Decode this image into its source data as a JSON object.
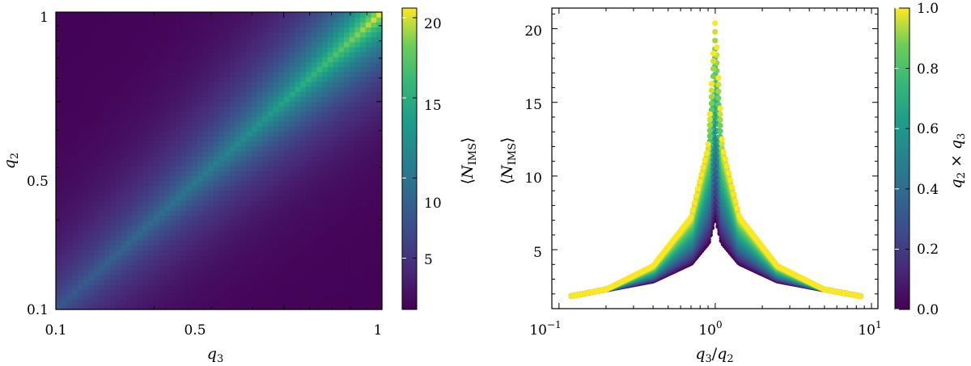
{
  "chart_data": [
    {
      "type": "heatmap",
      "title": "",
      "xlabel": {
        "base": "q",
        "sub": "3"
      },
      "ylabel": {
        "base": "q",
        "sub": "2"
      },
      "x_ticks": [
        "0.1",
        "0.5",
        "1"
      ],
      "y_ticks": [
        "0.1",
        "0.5",
        "1"
      ],
      "xlim": [
        0.1,
        1
      ],
      "ylim": [
        0.1,
        1
      ],
      "scale": "log",
      "value": "peak along q2 = q3, falling off away from the diagonal; maximum at q2 = q3 = 1",
      "diagonal_profile": {
        "q": [
          0.1,
          0.5,
          1
        ],
        "value": [
          7.5,
          14,
          20.5
        ]
      },
      "corner_values": {
        "q3=1,q2=0.1": 1.9,
        "q3=0.1,q2=1": 1.9
      },
      "colormap": "viridis",
      "colorbar": {
        "label": {
          "open": "⟨",
          "base": "N",
          "sub": "IMS",
          "close": "⟩"
        },
        "ticks": [
          "5",
          "10",
          "15",
          "20"
        ],
        "range": [
          1.8,
          20.6
        ]
      }
    },
    {
      "type": "scatter",
      "title": "",
      "xlabel": {
        "num": "q",
        "num_sub": "3",
        "slash": "/",
        "den": "q",
        "den_sub": "2"
      },
      "ylabel": {
        "open": "⟨",
        "base": "N",
        "sub": "IMS",
        "close": "⟩"
      },
      "xscale": "log",
      "x_ticks": [
        {
          "base": "10",
          "exp": "−1"
        },
        {
          "base": "10",
          "exp": "0"
        },
        {
          "base": "10",
          "exp": "1"
        }
      ],
      "y_ticks": [
        "5",
        "10",
        "15",
        "20"
      ],
      "xlim": [
        0.09,
        11
      ],
      "ylim": [
        1,
        21.4
      ],
      "envelope": {
        "x": [
          0.12,
          0.2,
          0.4,
          0.7,
          0.9,
          1.0,
          1.11,
          1.43,
          2.5,
          5.0,
          8.5
        ],
        "upper": [
          1.85,
          2.3,
          3.9,
          7.2,
          12.0,
          20.6,
          12.0,
          7.2,
          3.9,
          2.3,
          1.85
        ],
        "lower": [
          1.85,
          2.3,
          2.9,
          4.1,
          5.5,
          7.5,
          5.5,
          4.1,
          2.9,
          2.3,
          1.85
        ]
      },
      "colormap": "viridis",
      "colorbar": {
        "label": {
          "a": "q",
          "a_sub": "2",
          "op": " × ",
          "b": "q",
          "b_sub": "3"
        },
        "ticks": [
          "0.0",
          "0.2",
          "0.4",
          "0.6",
          "0.8",
          "1.0"
        ],
        "range": [
          0,
          1
        ]
      }
    }
  ]
}
